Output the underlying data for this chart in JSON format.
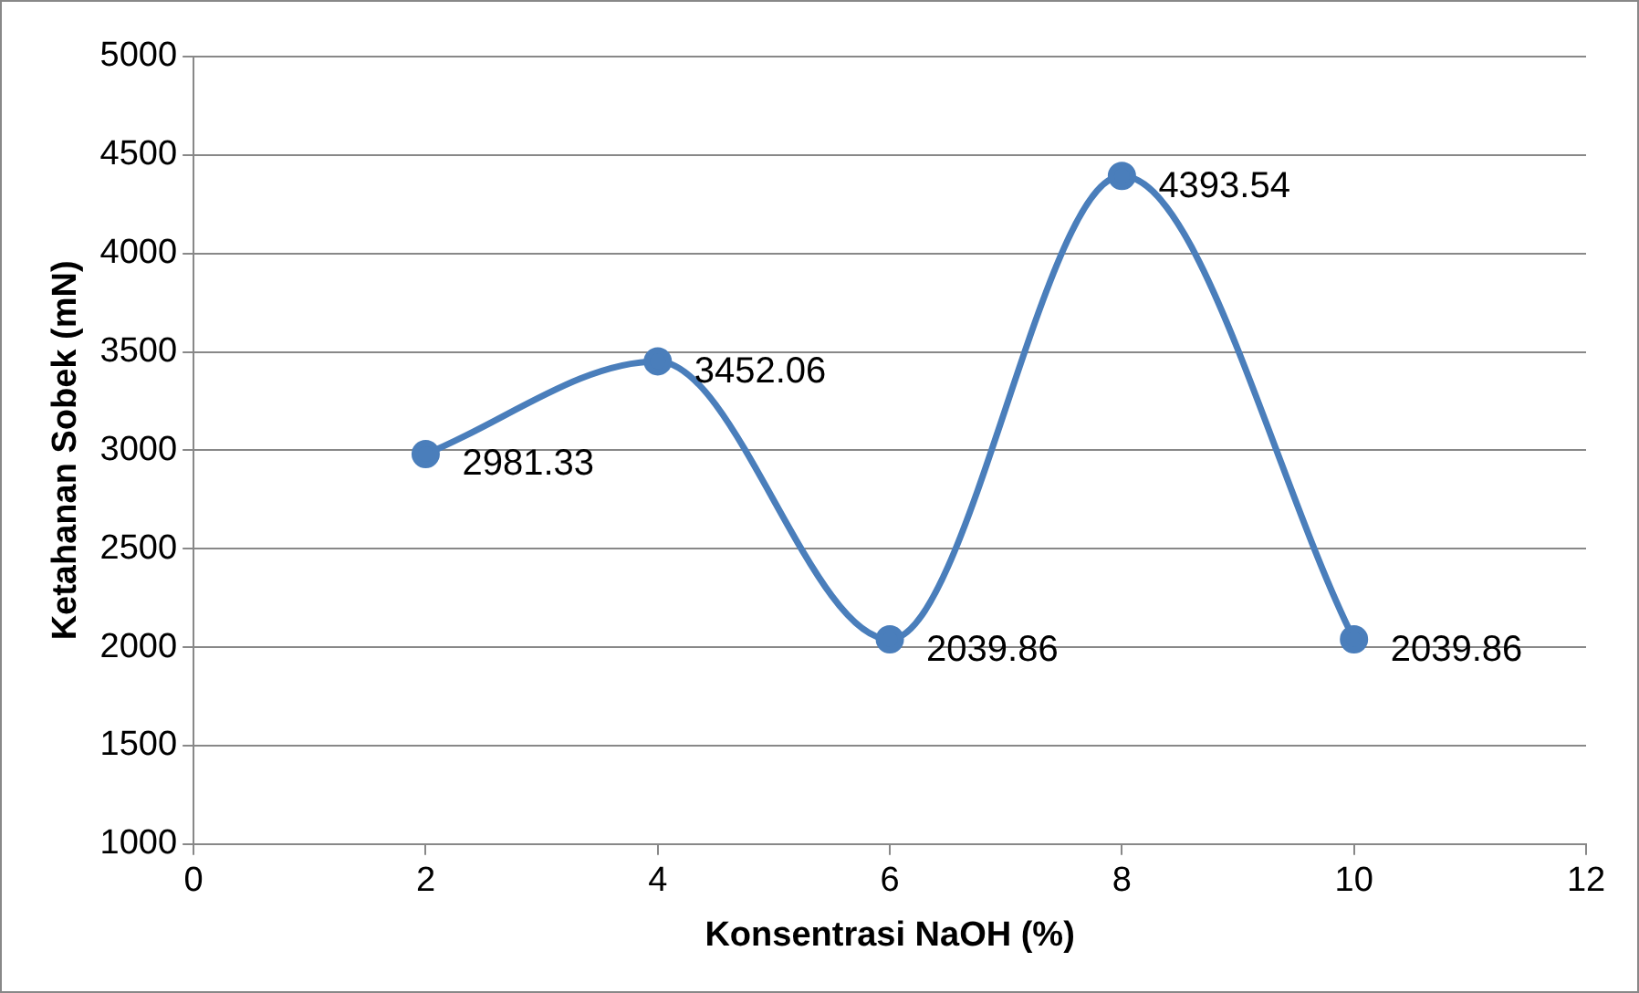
{
  "chart_data": {
    "type": "line",
    "xlabel": "Konsentrasi NaOH (%)",
    "ylabel": "Ketahanan Sobek (mN)",
    "x": [
      2,
      4,
      6,
      8,
      10
    ],
    "series": [
      {
        "color": "#4a7ebb",
        "values": [
          2981.33,
          3452.06,
          2039.86,
          4393.54,
          2039.86
        ]
      }
    ],
    "xlim": [
      0,
      12
    ],
    "xticks": [
      0,
      2,
      4,
      6,
      8,
      10,
      12
    ],
    "ylim": [
      1000,
      5000
    ],
    "yticks": [
      1000,
      1500,
      2000,
      2500,
      3000,
      3500,
      4000,
      4500,
      5000
    ],
    "grid": "y",
    "legend": false,
    "marker": "circle",
    "line_style": "solid",
    "data_labels": true
  }
}
